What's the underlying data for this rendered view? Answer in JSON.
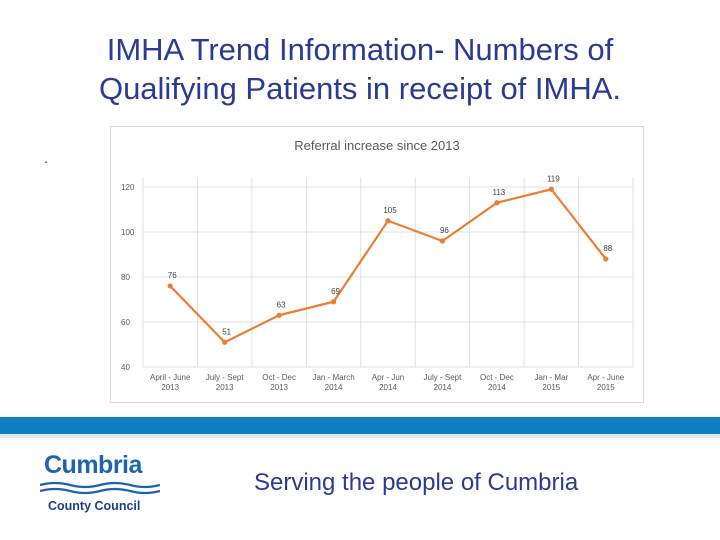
{
  "slide": {
    "title_line1": "IMHA Trend Information- Numbers of",
    "title_line2": "Qualifying Patients in receipt of IMHA.",
    "bullet": ".",
    "tagline": "Serving the people of Cumbria",
    "logo": {
      "name": "Cumbria",
      "subtitle": "County Council"
    }
  },
  "colors": {
    "title": "#2b3a92",
    "line": "#ed7d31",
    "band": "#0f7ec3",
    "grid": "#d9d9d9"
  },
  "chart_data": {
    "type": "line",
    "title": "Referral increase since 2013",
    "categories": [
      [
        "April - June",
        "2013"
      ],
      [
        "July - Sept",
        "2013"
      ],
      [
        "Oct - Dec",
        "2013"
      ],
      [
        "Jan - March",
        "2014"
      ],
      [
        "Apr - Jun",
        "2014"
      ],
      [
        "July - Sept",
        "2014"
      ],
      [
        "Oct - Dec",
        "2014"
      ],
      [
        "Jan - Mar",
        "2015"
      ],
      [
        "Apr - June",
        "2015"
      ]
    ],
    "values": [
      76,
      51,
      63,
      69,
      105,
      96,
      113,
      119,
      88
    ],
    "ylim": [
      40,
      120
    ],
    "yticks": [
      40,
      60,
      80,
      100,
      120
    ],
    "xlabel": "",
    "ylabel": "",
    "grid": true,
    "data_labels": true
  }
}
